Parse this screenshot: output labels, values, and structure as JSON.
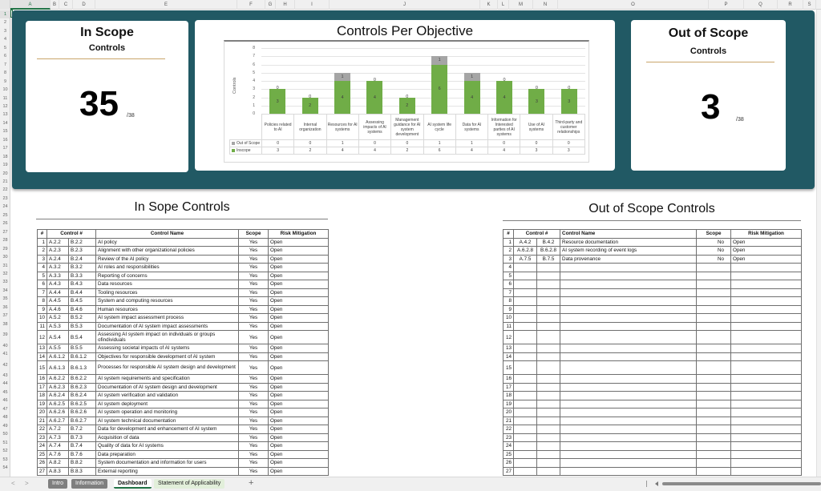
{
  "columns": [
    "A",
    "B",
    "C",
    "D",
    "E",
    "F",
    "G",
    "H",
    "I",
    "J",
    "K",
    "L",
    "M",
    "N",
    "O",
    "P",
    "Q",
    "R",
    "S"
  ],
  "rows": [
    "1",
    "2",
    "3",
    "4",
    "5",
    "6",
    "7",
    "8",
    "9",
    "10",
    "11",
    "12",
    "13",
    "14",
    "15",
    "16",
    "17",
    "18",
    "19",
    "20",
    "21",
    "22",
    "23",
    "24",
    "25",
    "26",
    "27",
    "28",
    "29",
    "30",
    "31",
    "32",
    "33",
    "34",
    "35",
    "36",
    "37",
    "38",
    "39",
    "40",
    "41",
    "42",
    "43",
    "44",
    "45",
    "46",
    "47",
    "48",
    "49",
    "50",
    "51",
    "52",
    "53",
    "54"
  ],
  "kpi_in": {
    "title": "In Scope",
    "subtitle": "Controls",
    "value": "35",
    "denominator": "/38"
  },
  "kpi_out": {
    "title": "Out of Scope",
    "subtitle": "Controls",
    "value": "3",
    "denominator": "/38"
  },
  "colors": {
    "band": "#215964",
    "inscope": "#70ad47",
    "outscope": "#a5a5a5",
    "rule": "#c9a66b"
  },
  "chart_data": {
    "type": "bar",
    "stacked": true,
    "title": "Controls Per Objective",
    "xlabel": "",
    "ylabel": "Controls",
    "ylim": [
      0,
      8
    ],
    "yticks": [
      "0",
      "1",
      "2",
      "3",
      "4",
      "5",
      "6",
      "7",
      "8"
    ],
    "grid": true,
    "legend_position": "data-table",
    "categories": [
      "Policies related to AI",
      "Internal organization",
      "Resources for AI systems",
      "Assessing impacts of AI systems",
      "Management guidance for AI system development",
      "AI system life cycle",
      "Data for AI systems",
      "Information for Interested parties of AI systems",
      "Use of AI systems",
      "Third-party and customer relationships"
    ],
    "series": [
      {
        "name": "Inscope",
        "values": [
          3,
          2,
          4,
          4,
          2,
          6,
          4,
          4,
          3,
          3
        ]
      },
      {
        "name": "Out of Scope",
        "values": [
          0,
          0,
          1,
          0,
          0,
          1,
          1,
          0,
          0,
          0
        ]
      }
    ]
  },
  "in_scope": {
    "title": "In Sope Controls",
    "headers": [
      "#",
      "Control #",
      "Control Name",
      "Scope",
      "Risk Mitigation"
    ],
    "rows": [
      [
        "1",
        "A.2.2",
        "B.2.2",
        "AI policy",
        "Yes",
        "Open"
      ],
      [
        "2",
        "A.2.3",
        "B.2.3",
        "Alignment with other organizational policies",
        "Yes",
        "Open"
      ],
      [
        "3",
        "A.2.4",
        "B.2.4",
        "Review of the AI policy",
        "Yes",
        "Open"
      ],
      [
        "4",
        "A.3.2",
        "B.3.2",
        "AI roles and responsibilities",
        "Yes",
        "Open"
      ],
      [
        "5",
        "A.3.3",
        "B.3.3",
        "Reporting of concerns",
        "Yes",
        "Open"
      ],
      [
        "6",
        "A.4.3",
        "B.4.3",
        "Data resources",
        "Yes",
        "Open"
      ],
      [
        "7",
        "A.4.4",
        "B.4.4",
        "Tooling resources",
        "Yes",
        "Open"
      ],
      [
        "8",
        "A.4.5",
        "B.4.5",
        "System and computing resources",
        "Yes",
        "Open"
      ],
      [
        "9",
        "A.4.6",
        "B.4.6",
        "Human resources",
        "Yes",
        "Open"
      ],
      [
        "10",
        "A.5.2",
        "B.5.2",
        "AI system impact assessment process",
        "Yes",
        "Open"
      ],
      [
        "11",
        "A.5.3",
        "B.5.3",
        "Documentation of AI system impact assessments",
        "Yes",
        "Open"
      ],
      [
        "12",
        "A.5.4",
        "B.5.4",
        "Assessing AI system impact on individuals or groups ofindividuals",
        "Yes",
        "Open"
      ],
      [
        "13",
        "A.5.5",
        "B.5.5",
        "Assessing societal impacts of AI systems",
        "Yes",
        "Open"
      ],
      [
        "14",
        "A.6.1.2",
        "B.6.1.2",
        "Objectives for responsible development of AI system",
        "Yes",
        "Open"
      ],
      [
        "15",
        "A.6.1.3",
        "B.6.1.3",
        "Processes for responsible AI system design and development",
        "Yes",
        "Open"
      ],
      [
        "16",
        "A.6.2.2",
        "B.6.2.2",
        "AI system requirements and specification",
        "Yes",
        "Open"
      ],
      [
        "17",
        "A.6.2.3",
        "B.6.2.3",
        "Documentation of AI system design and development",
        "Yes",
        "Open"
      ],
      [
        "18",
        "A.6.2.4",
        "B.6.2.4",
        "AI system verification and validation",
        "Yes",
        "Open"
      ],
      [
        "19",
        "A.6.2.5",
        "B.6.2.5",
        "AI system deployment",
        "Yes",
        "Open"
      ],
      [
        "20",
        "A.6.2.6",
        "B.6.2.6",
        "AI system operation and monitoring",
        "Yes",
        "Open"
      ],
      [
        "21",
        "A.6.2.7",
        "B.6.2.7",
        "AI system technical documentation",
        "Yes",
        "Open"
      ],
      [
        "22",
        "A.7.2",
        "B.7.2",
        "Data for development and enhancement of AI system",
        "Yes",
        "Open"
      ],
      [
        "23",
        "A.7.3",
        "B.7.3",
        "Acquisition of data",
        "Yes",
        "Open"
      ],
      [
        "24",
        "A.7.4",
        "B.7.4",
        "Quality of data for AI systems",
        "Yes",
        "Open"
      ],
      [
        "25",
        "A.7.6",
        "B.7.6",
        "Data preparation",
        "Yes",
        "Open"
      ],
      [
        "26",
        "A.8.2",
        "B.8.2",
        "System documentation and information for users",
        "Yes",
        "Open"
      ],
      [
        "27",
        "A.8.3",
        "B.8.3",
        "External reporting",
        "Yes",
        "Open"
      ]
    ]
  },
  "out_scope": {
    "title": "Out of Scope Controls",
    "headers": [
      "#",
      "Control #",
      "Control Name",
      "Scope",
      "Risk Mitigation"
    ],
    "rows": [
      [
        "1",
        "A.4.2",
        "B.4.2",
        "Resource documentation",
        "No",
        "Open"
      ],
      [
        "2",
        "A.6.2.8",
        "B.6.2.8",
        "AI system recording of event logs",
        "No",
        "Open"
      ],
      [
        "3",
        "A.7.5",
        "B.7.5",
        "Data provenance",
        "No",
        "Open"
      ],
      [
        "4",
        "",
        "",
        "",
        "",
        ""
      ],
      [
        "5",
        "",
        "",
        "",
        "",
        ""
      ],
      [
        "6",
        "",
        "",
        "",
        "",
        ""
      ],
      [
        "7",
        "",
        "",
        "",
        "",
        ""
      ],
      [
        "8",
        "",
        "",
        "",
        "",
        ""
      ],
      [
        "9",
        "",
        "",
        "",
        "",
        ""
      ],
      [
        "10",
        "",
        "",
        "",
        "",
        ""
      ],
      [
        "11",
        "",
        "",
        "",
        "",
        ""
      ],
      [
        "12",
        "",
        "",
        "",
        "",
        ""
      ],
      [
        "13",
        "",
        "",
        "",
        "",
        ""
      ],
      [
        "14",
        "",
        "",
        "",
        "",
        ""
      ],
      [
        "15",
        "",
        "",
        "",
        "",
        ""
      ],
      [
        "16",
        "",
        "",
        "",
        "",
        ""
      ],
      [
        "17",
        "",
        "",
        "",
        "",
        ""
      ],
      [
        "18",
        "",
        "",
        "",
        "",
        ""
      ],
      [
        "19",
        "",
        "",
        "",
        "",
        ""
      ],
      [
        "20",
        "",
        "",
        "",
        "",
        ""
      ],
      [
        "21",
        "",
        "",
        "",
        "",
        ""
      ],
      [
        "22",
        "",
        "",
        "",
        "",
        ""
      ],
      [
        "23",
        "",
        "",
        "",
        "",
        ""
      ],
      [
        "24",
        "",
        "",
        "",
        "",
        ""
      ],
      [
        "25",
        "",
        "",
        "",
        "",
        ""
      ],
      [
        "26",
        "",
        "",
        "",
        "",
        ""
      ],
      [
        "27",
        "",
        "",
        "",
        "",
        ""
      ]
    ]
  },
  "sheet_tabs": [
    {
      "label": "Intro",
      "style": "gray"
    },
    {
      "label": "Information",
      "style": "gray"
    },
    {
      "label": "Dashboard",
      "style": "active"
    },
    {
      "label": "Statement of Applicability",
      "style": "green"
    }
  ],
  "add_sheet_label": "+",
  "nav": {
    "prev": "<",
    "next": ">"
  }
}
